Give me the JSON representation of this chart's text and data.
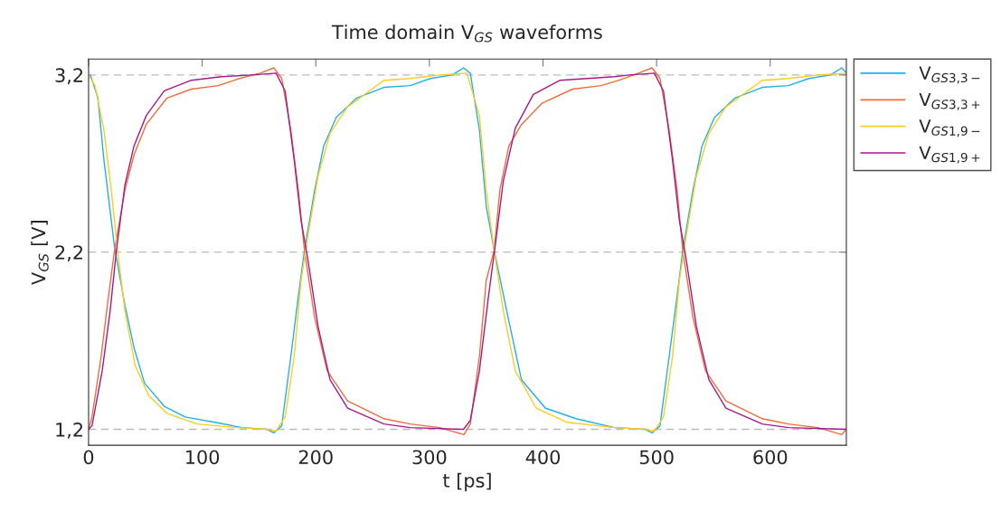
{
  "chart_data": {
    "type": "line",
    "title": "Time domain V$_{GS}$ waveforms",
    "xlabel": "t [ps]",
    "ylabel": "V$_{GS}$ [V]",
    "xlim": [
      0,
      667
    ],
    "xticks": [
      0,
      100,
      200,
      300,
      400,
      500,
      600
    ],
    "ylim": [
      1.11,
      3.29
    ],
    "yticks": [
      {
        "value": 1.2,
        "label": "1,2"
      },
      {
        "value": 2.2,
        "label": "2,2"
      },
      {
        "value": 3.2,
        "label": "3,2"
      }
    ],
    "grid": "y",
    "legend": "top right",
    "line_style": "solid",
    "marker": "none",
    "series": [
      {
        "name": "V$_{GS3,3−}$",
        "color": "#1fb1e8",
        "x": [
          0,
          1.6,
          8.2,
          13.5,
          22.8,
          32,
          40,
          49.3,
          66.6,
          85,
          111,
          135,
          157,
          163,
          170,
          178,
          184.6,
          190,
          199,
          207,
          218,
          236,
          260,
          283,
          301,
          320,
          330,
          336,
          344,
          350,
          357,
          368,
          381,
          402,
          429,
          463,
          490,
          496,
          503,
          511,
          518,
          523,
          532,
          540,
          551,
          569,
          593,
          616,
          634,
          653,
          663,
          667
        ],
        "values": [
          3.2,
          3.2,
          3.07,
          2.72,
          2.23,
          1.9,
          1.66,
          1.46,
          1.33,
          1.27,
          1.24,
          1.21,
          1.2,
          1.18,
          1.22,
          1.61,
          1.95,
          2.21,
          2.55,
          2.8,
          2.96,
          3.07,
          3.13,
          3.14,
          3.18,
          3.2,
          3.24,
          3.21,
          2.89,
          2.46,
          2.21,
          1.87,
          1.48,
          1.32,
          1.26,
          1.21,
          1.2,
          1.18,
          1.22,
          1.61,
          1.95,
          2.21,
          2.55,
          2.8,
          2.96,
          3.07,
          3.13,
          3.14,
          3.18,
          3.2,
          3.24,
          3.21
        ]
      },
      {
        "name": "V$_{GS3,3+}$",
        "color": "#f26c3a",
        "x": [
          0,
          3,
          11,
          17.5,
          22.8,
          32,
          40,
          50.7,
          69,
          90.5,
          114,
          133,
          151,
          163,
          170,
          178,
          184.6,
          190,
          199,
          210,
          228,
          260,
          283,
          309,
          330.5,
          336,
          344,
          350,
          357,
          362,
          370,
          381,
          399,
          426,
          451,
          467,
          484,
          496,
          503,
          511,
          518,
          523,
          532,
          543,
          561,
          593,
          616,
          642,
          663,
          667
        ],
        "values": [
          1.2,
          1.27,
          1.61,
          1.95,
          2.21,
          2.55,
          2.75,
          2.92,
          3.07,
          3.12,
          3.14,
          3.18,
          3.21,
          3.24,
          3.18,
          2.89,
          2.55,
          2.21,
          1.83,
          1.53,
          1.36,
          1.26,
          1.23,
          1.21,
          1.17,
          1.23,
          1.61,
          2.04,
          2.21,
          2.55,
          2.8,
          2.92,
          3.04,
          3.12,
          3.14,
          3.17,
          3.21,
          3.24,
          3.18,
          2.89,
          2.55,
          2.21,
          1.83,
          1.53,
          1.36,
          1.26,
          1.23,
          1.21,
          1.17,
          1.2
        ]
      },
      {
        "name": "V$_{GS1,9−}$",
        "color": "#ffcb1f",
        "x": [
          0,
          5.6,
          13.5,
          20,
          25.5,
          32,
          41,
          53,
          69,
          95.5,
          130,
          157,
          165,
          173,
          181,
          187,
          193,
          202,
          212.5,
          228,
          260,
          283,
          309,
          333,
          344,
          350,
          357,
          365,
          375.6,
          394,
          421,
          463,
          490,
          498,
          506,
          514,
          520,
          526,
          535,
          546,
          561,
          593,
          616,
          642,
          667
        ],
        "values": [
          3.2,
          3.14,
          2.89,
          2.55,
          2.21,
          1.87,
          1.56,
          1.39,
          1.29,
          1.23,
          1.21,
          1.2,
          1.19,
          1.27,
          1.61,
          2.04,
          2.29,
          2.63,
          2.87,
          3.02,
          3.17,
          3.18,
          3.2,
          3.21,
          2.97,
          2.55,
          2.21,
          1.87,
          1.53,
          1.32,
          1.24,
          1.21,
          1.2,
          1.19,
          1.27,
          1.61,
          2.04,
          2.29,
          2.63,
          2.87,
          3.02,
          3.17,
          3.18,
          3.2,
          3.21
        ]
      },
      {
        "name": "V$_{GS1,9+}$",
        "color": "#a6198a",
        "x": [
          0,
          3,
          12,
          19,
          24.5,
          32,
          40,
          50.7,
          66.6,
          90.5,
          117,
          143,
          165,
          173,
          181,
          187,
          193,
          202,
          212.5,
          228,
          260,
          283,
          330,
          336,
          344,
          352,
          358.6,
          365,
          375.6,
          391.5,
          415,
          463,
          476,
          498,
          506,
          514,
          520,
          526,
          535,
          546,
          561,
          593,
          616,
          667
        ],
        "values": [
          1.2,
          1.22,
          1.53,
          1.87,
          2.21,
          2.58,
          2.8,
          2.97,
          3.11,
          3.17,
          3.19,
          3.2,
          3.21,
          3.11,
          2.72,
          2.38,
          2.16,
          1.78,
          1.48,
          1.32,
          1.23,
          1.21,
          1.2,
          1.25,
          1.53,
          1.95,
          2.27,
          2.6,
          2.9,
          3.09,
          3.17,
          3.19,
          3.2,
          3.21,
          3.11,
          2.72,
          2.38,
          2.16,
          1.78,
          1.48,
          1.32,
          1.23,
          1.21,
          1.2
        ]
      }
    ]
  }
}
